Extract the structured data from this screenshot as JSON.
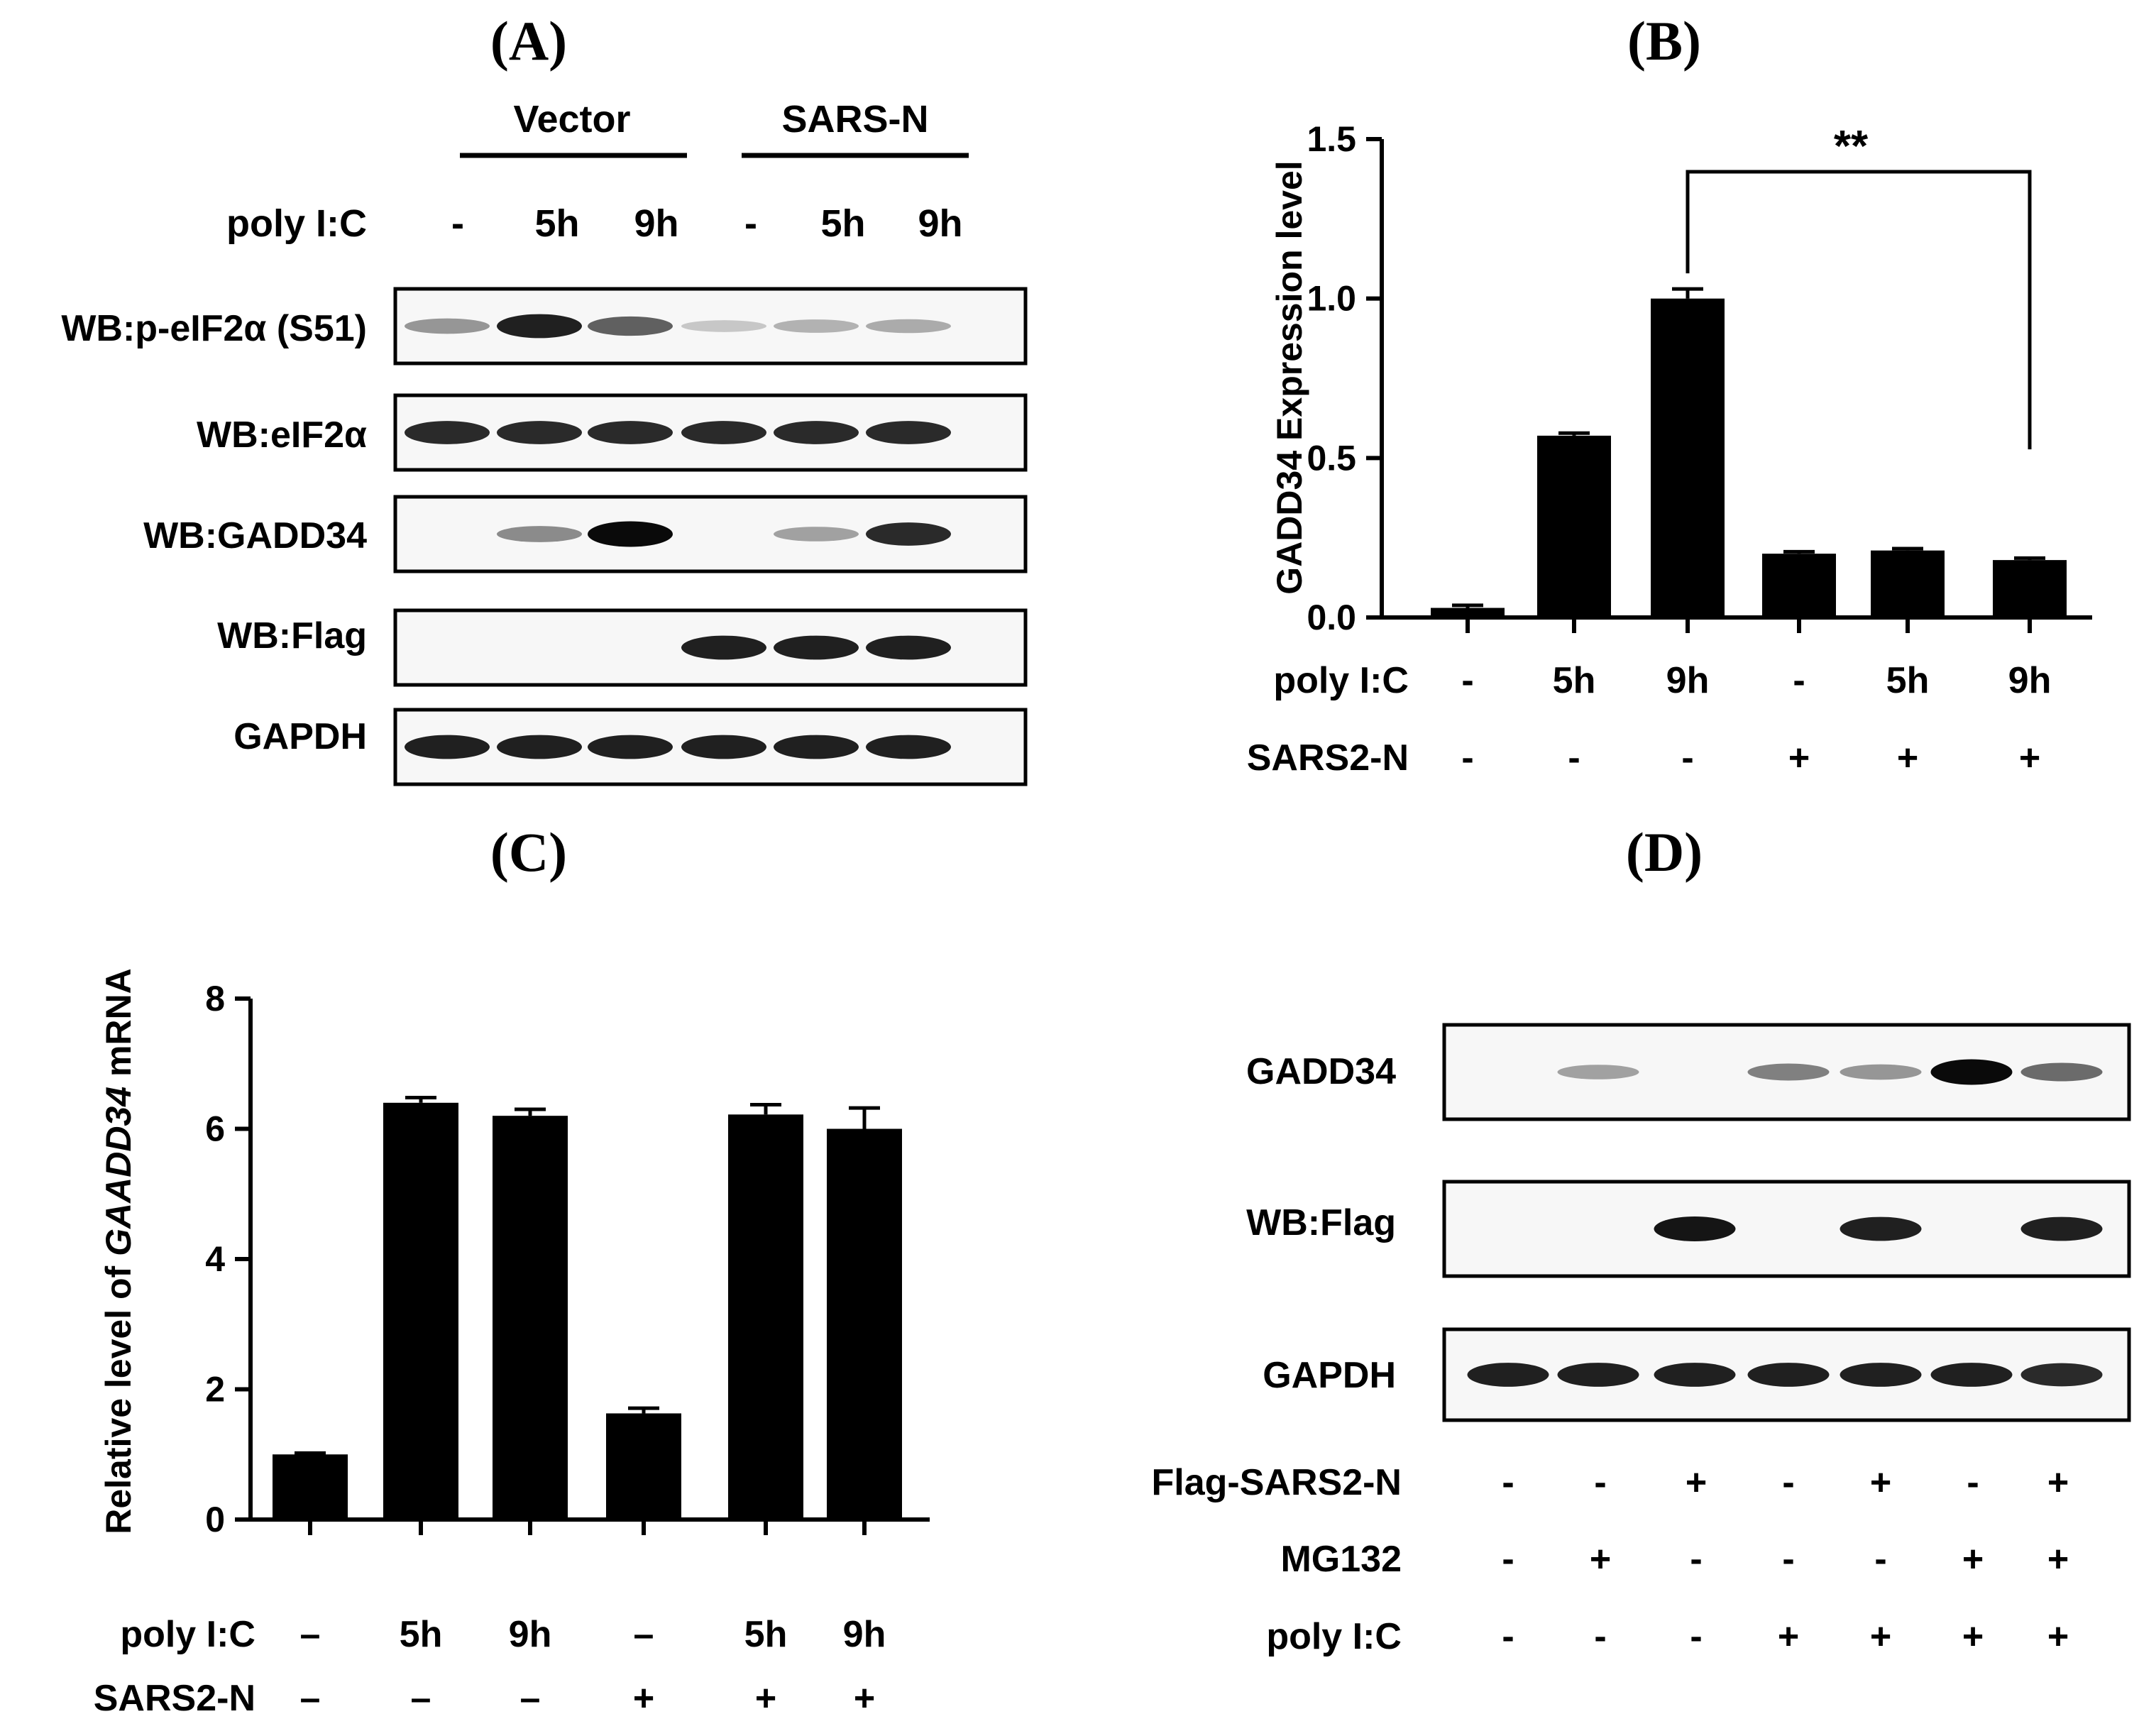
{
  "panels": {
    "A": {
      "label": "(A)",
      "groups": [
        "Vector",
        "SARS-N"
      ],
      "condition_label": "poly I:C",
      "conditions": [
        "-",
        "5h",
        "9h",
        "-",
        "5h",
        "9h"
      ],
      "rows": [
        {
          "label": "WB:p-eIF2α (S51)",
          "band_intensity": [
            0.35,
            0.9,
            0.6,
            0.12,
            0.22,
            0.25
          ]
        },
        {
          "label": "WB:eIF2α",
          "band_intensity": [
            0.85,
            0.85,
            0.85,
            0.85,
            0.85,
            0.85
          ]
        },
        {
          "label": "WB:GADD34",
          "band_intensity": [
            0,
            0.4,
            1.0,
            0,
            0.3,
            0.85
          ]
        },
        {
          "label": "WB:Flag",
          "band_intensity": [
            0,
            0,
            0,
            0.9,
            0.9,
            0.9
          ]
        },
        {
          "label": "GAPDH",
          "band_intensity": [
            0.9,
            0.9,
            0.9,
            0.9,
            0.9,
            0.9
          ]
        }
      ]
    },
    "D": {
      "label": "(D)",
      "rows": [
        {
          "label": "GADD34",
          "band_intensity": [
            0,
            0.3,
            0,
            0.45,
            0.35,
            1.0,
            0.55
          ]
        },
        {
          "label": "WB:Flag",
          "band_intensity": [
            0,
            0,
            0.95,
            0,
            0.9,
            0,
            0.9
          ]
        },
        {
          "label": "GAPDH",
          "band_intensity": [
            0.9,
            0.9,
            0.9,
            0.9,
            0.9,
            0.9,
            0.85
          ]
        }
      ],
      "conditions": [
        {
          "label": "Flag-SARS2-N",
          "values": [
            "-",
            "-",
            "+",
            "-",
            "+",
            "-",
            "+"
          ]
        },
        {
          "label": "MG132",
          "values": [
            "-",
            "+",
            "-",
            "-",
            "-",
            "+",
            "+"
          ]
        },
        {
          "label": "poly I:C",
          "values": [
            "-",
            "-",
            "-",
            "+",
            "+",
            "+",
            "+"
          ]
        }
      ]
    }
  },
  "chart_data": [
    {
      "panel": "(B)",
      "type": "bar",
      "ylabel": "GADD34 Expression level",
      "ylim": [
        0,
        1.5
      ],
      "yticks": [
        "0.0",
        "0.5",
        "1.0",
        "1.5"
      ],
      "values": [
        0.03,
        0.57,
        1.0,
        0.2,
        0.21,
        0.18
      ],
      "errors": [
        0.008,
        0.008,
        0.03,
        0.006,
        0.006,
        0.006
      ],
      "condition_rows": [
        {
          "label": "poly I:C",
          "values": [
            "-",
            "5h",
            "9h",
            "-",
            "5h",
            "9h"
          ]
        },
        {
          "label": "SARS2-N",
          "values": [
            "-",
            "-",
            "-",
            "+",
            "+",
            "+"
          ]
        }
      ],
      "significance": {
        "label": "**",
        "from_index": 2,
        "to_index": 5
      }
    },
    {
      "panel": "(C)",
      "type": "bar",
      "ylabel_parts": [
        "Relative level of ",
        "GAADD34",
        " mRNA"
      ],
      "ylim": [
        0,
        8
      ],
      "yticks": [
        "0",
        "2",
        "4",
        "6",
        "8"
      ],
      "values": [
        1.0,
        6.4,
        6.2,
        1.63,
        6.22,
        6.0
      ],
      "errors": [
        0.02,
        0.08,
        0.1,
        0.08,
        0.15,
        0.32
      ],
      "condition_rows": [
        {
          "label": "poly I:C",
          "values": [
            "–",
            "5h",
            "9h",
            "–",
            "5h",
            "9h"
          ]
        },
        {
          "label": "SARS2-N",
          "values": [
            "–",
            "–",
            "–",
            "+",
            "+",
            "+"
          ]
        }
      ]
    }
  ]
}
